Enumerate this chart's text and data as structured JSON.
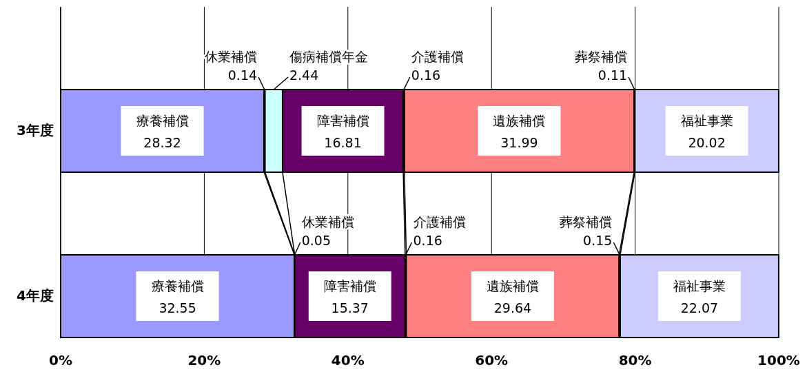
{
  "chart_data": {
    "type": "bar",
    "orientation": "horizontal",
    "stacked": true,
    "categories": [
      "3年度",
      "4年度"
    ],
    "series": [
      {
        "name": "療養補償",
        "color": "#9999ff",
        "values": [
          28.32,
          32.55
        ]
      },
      {
        "name": "休業補償",
        "color": "#000000",
        "values": [
          0.14,
          0.05
        ]
      },
      {
        "name": "傷病補償年金",
        "color": "#ccffff",
        "values": [
          2.44,
          null
        ]
      },
      {
        "name": "障害補償",
        "color": "#660066",
        "values": [
          16.81,
          15.37
        ]
      },
      {
        "name": "介護補償",
        "color": "#000000",
        "values": [
          0.16,
          0.16
        ]
      },
      {
        "name": "遺族補償",
        "color": "#ff8080",
        "values": [
          31.99,
          29.64
        ]
      },
      {
        "name": "葬祭補償",
        "color": "#000000",
        "values": [
          0.11,
          0.15
        ]
      },
      {
        "name": "福祉事業",
        "color": "#ccccff",
        "values": [
          20.02,
          22.07
        ]
      }
    ],
    "xlim": [
      0,
      100
    ],
    "xticks": [
      {
        "value": 0,
        "label": "0%"
      },
      {
        "value": 20,
        "label": "20%"
      },
      {
        "value": 40,
        "label": "40%"
      },
      {
        "value": 60,
        "label": "60%"
      },
      {
        "value": 80,
        "label": "80%"
      },
      {
        "value": 100,
        "label": "100%"
      }
    ],
    "grid": "x",
    "data_labels": true,
    "legend": false
  }
}
